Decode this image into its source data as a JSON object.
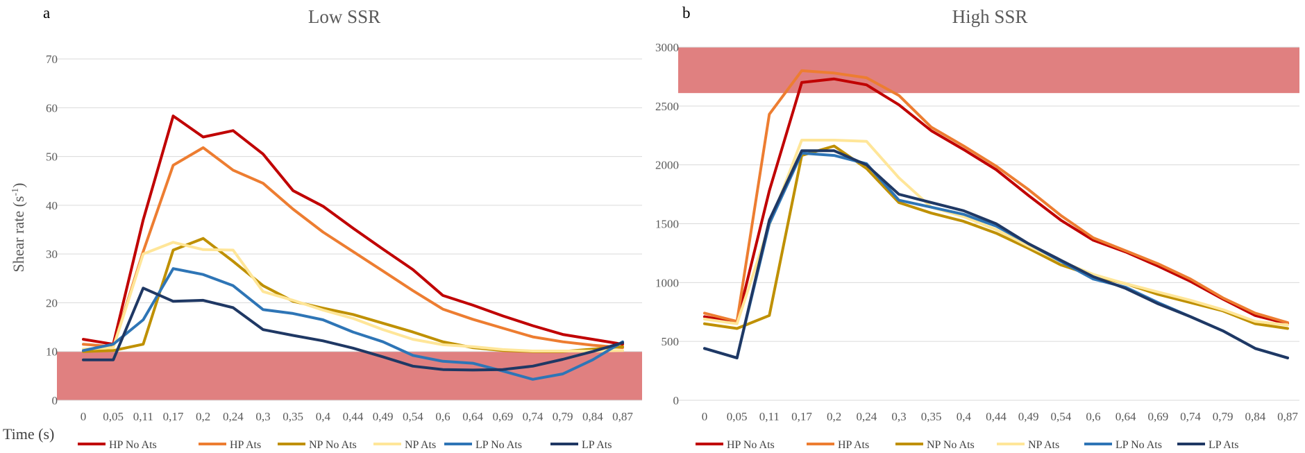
{
  "figure_xlabel": "Time (s)",
  "colors": {
    "HP No Ats": "#c00000",
    "HP Ats": "#ed7d31",
    "NP No Ats": "#bf9000",
    "NP Ats": "#ffe699",
    "LP No Ats": "#2e75b6",
    "LP Ats": "#1f3864",
    "band": "#e08080"
  },
  "chart_data": [
    {
      "type": "line",
      "panel_label": "a",
      "title": "Low SSR",
      "ylabel": "Shear rate (s",
      "ylabel_sup": "-1",
      "ylabel_end": ")",
      "xlabel": "Time (s)",
      "ylim": [
        0,
        70
      ],
      "yticks": [
        "0",
        "10",
        "20",
        "30",
        "40",
        "50",
        "60",
        "70"
      ],
      "grid": true,
      "legend_position": "bottom",
      "categories": [
        "0",
        "0,05",
        "0,11",
        "0,17",
        "0,2",
        "0,24",
        "0,3",
        "0,35",
        "0,4",
        "0,44",
        "0,49",
        "0,54",
        "0,6",
        "0,64",
        "0,69",
        "0,74",
        "0,79",
        "0,84",
        "0,87"
      ],
      "band": {
        "from": 0,
        "to": 10
      },
      "series": [
        {
          "name": "HP No Ats",
          "values": [
            12.5,
            11.5,
            37,
            58.3,
            54,
            55.3,
            50.5,
            43,
            39.8,
            35.3,
            31,
            26.8,
            21.5,
            19.5,
            17.3,
            15.3,
            13.5,
            12.5,
            11.5
          ]
        },
        {
          "name": "HP Ats",
          "values": [
            11.5,
            11,
            30.5,
            48.2,
            51.8,
            47.2,
            44.5,
            39.2,
            34.5,
            30.5,
            26.5,
            22.5,
            18.7,
            16.6,
            14.8,
            13,
            12,
            11.3,
            10.8
          ]
        },
        {
          "name": "NP No Ats",
          "values": [
            10,
            10.2,
            11.5,
            30.8,
            33.2,
            28.5,
            23.5,
            20.3,
            18.9,
            17.6,
            15.8,
            14,
            12,
            10.8,
            10.2,
            10,
            10,
            10.5,
            11
          ]
        },
        {
          "name": "NP Ats",
          "values": [
            10.5,
            10.8,
            30,
            32.4,
            30.9,
            30.8,
            22.3,
            20.5,
            18.5,
            16.8,
            14.5,
            12.5,
            11.4,
            11,
            10.4,
            10.1,
            10.1,
            10.1,
            10.2
          ]
        },
        {
          "name": "LP No Ats",
          "values": [
            10.2,
            11.5,
            16.5,
            27,
            25.8,
            23.5,
            18.6,
            17.8,
            16.5,
            14,
            12,
            9.2,
            8,
            7.6,
            6,
            4.3,
            5.4,
            8.3,
            12
          ]
        },
        {
          "name": "LP Ats",
          "values": [
            8.3,
            8.3,
            23,
            20.3,
            20.5,
            19,
            14.5,
            13.3,
            12.2,
            10.7,
            8.9,
            7,
            6.3,
            6.2,
            6.3,
            7,
            8.4,
            10,
            11.8
          ]
        }
      ]
    },
    {
      "type": "line",
      "panel_label": "b",
      "title": "High SSR",
      "ylabel": "",
      "xlabel": "Time (s)",
      "ylim": [
        0,
        3000
      ],
      "yticks": [
        "0",
        "500",
        "1000",
        "1500",
        "2000",
        "2500",
        "3000"
      ],
      "grid": true,
      "legend_position": "bottom",
      "categories": [
        "0",
        "0,05",
        "0,11",
        "0,17",
        "0,2",
        "0,24",
        "0,3",
        "0,35",
        "0,4",
        "0,44",
        "0,49",
        "0,54",
        "0,6",
        "0,64",
        "0,69",
        "0,74",
        "0,79",
        "0,84",
        "0,87"
      ],
      "band": {
        "from": 2610,
        "to": 3000
      },
      "series": [
        {
          "name": "HP No Ats",
          "values": [
            710,
            660,
            1780,
            2700,
            2730,
            2680,
            2510,
            2290,
            2130,
            1960,
            1740,
            1530,
            1360,
            1260,
            1140,
            1010,
            860,
            720,
            650
          ]
        },
        {
          "name": "HP Ats",
          "values": [
            740,
            670,
            2430,
            2800,
            2780,
            2740,
            2590,
            2320,
            2160,
            1990,
            1790,
            1570,
            1380,
            1270,
            1160,
            1030,
            870,
            740,
            660
          ]
        },
        {
          "name": "NP No Ats",
          "values": [
            650,
            610,
            720,
            2080,
            2160,
            1970,
            1680,
            1590,
            1520,
            1420,
            1290,
            1150,
            1060,
            990,
            900,
            830,
            760,
            650,
            610
          ]
        },
        {
          "name": "NP Ats",
          "values": [
            690,
            650,
            1490,
            2210,
            2210,
            2200,
            1890,
            1640,
            1560,
            1450,
            1310,
            1180,
            1070,
            990,
            920,
            850,
            770,
            670,
            640
          ]
        },
        {
          "name": "LP No Ats",
          "values": [
            440,
            360,
            1500,
            2100,
            2080,
            2010,
            1700,
            1640,
            1580,
            1480,
            1330,
            1180,
            1030,
            960,
            830,
            710,
            590,
            440,
            360
          ]
        },
        {
          "name": "LP Ats",
          "values": [
            440,
            360,
            1530,
            2120,
            2120,
            2000,
            1750,
            1680,
            1610,
            1500,
            1330,
            1190,
            1050,
            950,
            820,
            710,
            590,
            440,
            360
          ]
        }
      ]
    }
  ]
}
